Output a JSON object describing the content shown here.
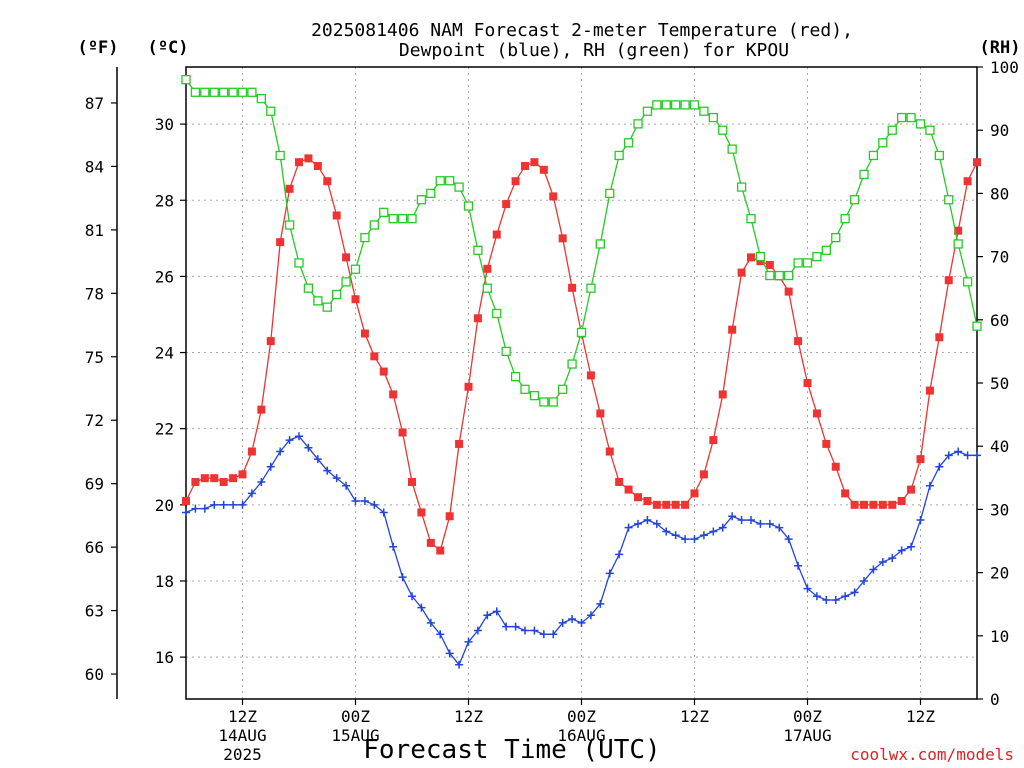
{
  "chart_data": {
    "type": "line",
    "title_line1": "2025081406 NAM Forecast 2-meter Temperature (red),",
    "title_line2": "Dewpoint (blue), RH (green) for KPOU",
    "xlabel": "Forecast Time (UTC)",
    "credit": "coolwx.com/models",
    "units": {
      "f": "(ºF)",
      "c": "(ºC)",
      "rh": "(RH)"
    },
    "x_ticks": [
      {
        "h": 6,
        "label": "12Z",
        "sub": "14AUG",
        "sub2": "2025"
      },
      {
        "h": 18,
        "label": "00Z",
        "sub": "15AUG",
        "sub2": ""
      },
      {
        "h": 30,
        "label": "12Z",
        "sub": "",
        "sub2": ""
      },
      {
        "h": 42,
        "label": "00Z",
        "sub": "16AUG",
        "sub2": ""
      },
      {
        "h": 54,
        "label": "12Z",
        "sub": "",
        "sub2": ""
      },
      {
        "h": 66,
        "label": "00Z",
        "sub": "17AUG",
        "sub2": ""
      },
      {
        "h": 78,
        "label": "12Z",
        "sub": "",
        "sub2": ""
      }
    ],
    "c_ticks": [
      16,
      18,
      20,
      22,
      24,
      26,
      28,
      30
    ],
    "f_ticks": [
      60,
      63,
      66,
      69,
      72,
      75,
      78,
      81,
      84,
      87
    ],
    "rh_ticks": [
      0,
      10,
      20,
      30,
      40,
      50,
      60,
      70,
      80,
      90,
      100
    ],
    "xlim": [
      0,
      84
    ],
    "ylim_c": [
      14.9,
      31.5
    ],
    "ylim_rh": [
      0,
      100
    ],
    "colors": {
      "temp": "#ee3333",
      "dew": "#2244dd",
      "rh": "#22cc22"
    },
    "x_hours": [
      0,
      1,
      2,
      3,
      4,
      5,
      6,
      7,
      8,
      9,
      10,
      11,
      12,
      13,
      14,
      15,
      16,
      17,
      18,
      19,
      20,
      21,
      22,
      23,
      24,
      25,
      26,
      27,
      28,
      29,
      30,
      31,
      32,
      33,
      34,
      35,
      36,
      37,
      38,
      39,
      40,
      41,
      42,
      43,
      44,
      45,
      46,
      47,
      48,
      49,
      50,
      51,
      52,
      53,
      54,
      55,
      56,
      57,
      58,
      59,
      60,
      61,
      62,
      63,
      64,
      65,
      66,
      67,
      68,
      69,
      70,
      71,
      72,
      73,
      74,
      75,
      76,
      77,
      78,
      79,
      80,
      81,
      82,
      83,
      84
    ],
    "series": [
      {
        "name": "Temperature",
        "unit": "C",
        "marker": "filled-square",
        "values": [
          20.1,
          20.6,
          20.7,
          20.7,
          20.6,
          20.7,
          20.8,
          21.4,
          22.5,
          24.3,
          26.9,
          28.3,
          29.0,
          29.1,
          28.9,
          28.5,
          27.6,
          26.5,
          25.4,
          24.5,
          23.9,
          23.5,
          22.9,
          21.9,
          20.6,
          19.8,
          19.0,
          18.8,
          19.7,
          21.6,
          23.1,
          24.9,
          26.2,
          27.1,
          27.9,
          28.5,
          28.9,
          29.0,
          28.8,
          28.1,
          27.0,
          25.7,
          24.5,
          23.4,
          22.4,
          21.4,
          20.6,
          20.4,
          20.2,
          20.1,
          20.0,
          20.0,
          20.0,
          20.0,
          20.3,
          20.8,
          21.7,
          22.9,
          24.6,
          26.1,
          26.5,
          26.4,
          26.3,
          26.0,
          25.6,
          24.3,
          23.2,
          22.4,
          21.6,
          21.0,
          20.3,
          20.0,
          20.0,
          20.0,
          20.0,
          20.0,
          20.1,
          20.4,
          21.2,
          23.0,
          24.4,
          25.9,
          27.2,
          28.5,
          29.0
        ]
      },
      {
        "name": "Dewpoint",
        "unit": "C",
        "marker": "plus",
        "values": [
          19.8,
          19.9,
          19.9,
          20.0,
          20.0,
          20.0,
          20.0,
          20.3,
          20.6,
          21.0,
          21.4,
          21.7,
          21.8,
          21.5,
          21.2,
          20.9,
          20.7,
          20.5,
          20.1,
          20.1,
          20.0,
          19.8,
          18.9,
          18.1,
          17.6,
          17.3,
          16.9,
          16.6,
          16.1,
          15.8,
          16.4,
          16.7,
          17.1,
          17.2,
          16.8,
          16.8,
          16.7,
          16.7,
          16.6,
          16.6,
          16.9,
          17.0,
          16.9,
          17.1,
          17.4,
          18.2,
          18.7,
          19.4,
          19.5,
          19.6,
          19.5,
          19.3,
          19.2,
          19.1,
          19.1,
          19.2,
          19.3,
          19.4,
          19.7,
          19.6,
          19.6,
          19.5,
          19.5,
          19.4,
          19.1,
          18.4,
          17.8,
          17.6,
          17.5,
          17.5,
          17.6,
          17.7,
          18.0,
          18.3,
          18.5,
          18.6,
          18.8,
          18.9,
          19.6,
          20.5,
          21.0,
          21.3,
          21.4,
          21.3,
          21.3
        ]
      },
      {
        "name": "RH",
        "unit": "%",
        "marker": "open-square",
        "values": [
          98,
          96,
          96,
          96,
          96,
          96,
          96,
          96,
          95,
          93,
          86,
          75,
          69,
          65,
          63,
          62,
          64,
          66,
          68,
          73,
          75,
          77,
          76,
          76,
          76,
          79,
          80,
          82,
          82,
          81,
          78,
          71,
          65,
          61,
          55,
          51,
          49,
          48,
          47,
          47,
          49,
          53,
          58,
          65,
          72,
          80,
          86,
          88,
          91,
          93,
          94,
          94,
          94,
          94,
          94,
          93,
          92,
          90,
          87,
          81,
          76,
          70,
          67,
          67,
          67,
          69,
          69,
          70,
          71,
          73,
          76,
          79,
          83,
          86,
          88,
          90,
          92,
          92,
          91,
          90,
          86,
          79,
          72,
          66,
          59
        ]
      }
    ]
  }
}
